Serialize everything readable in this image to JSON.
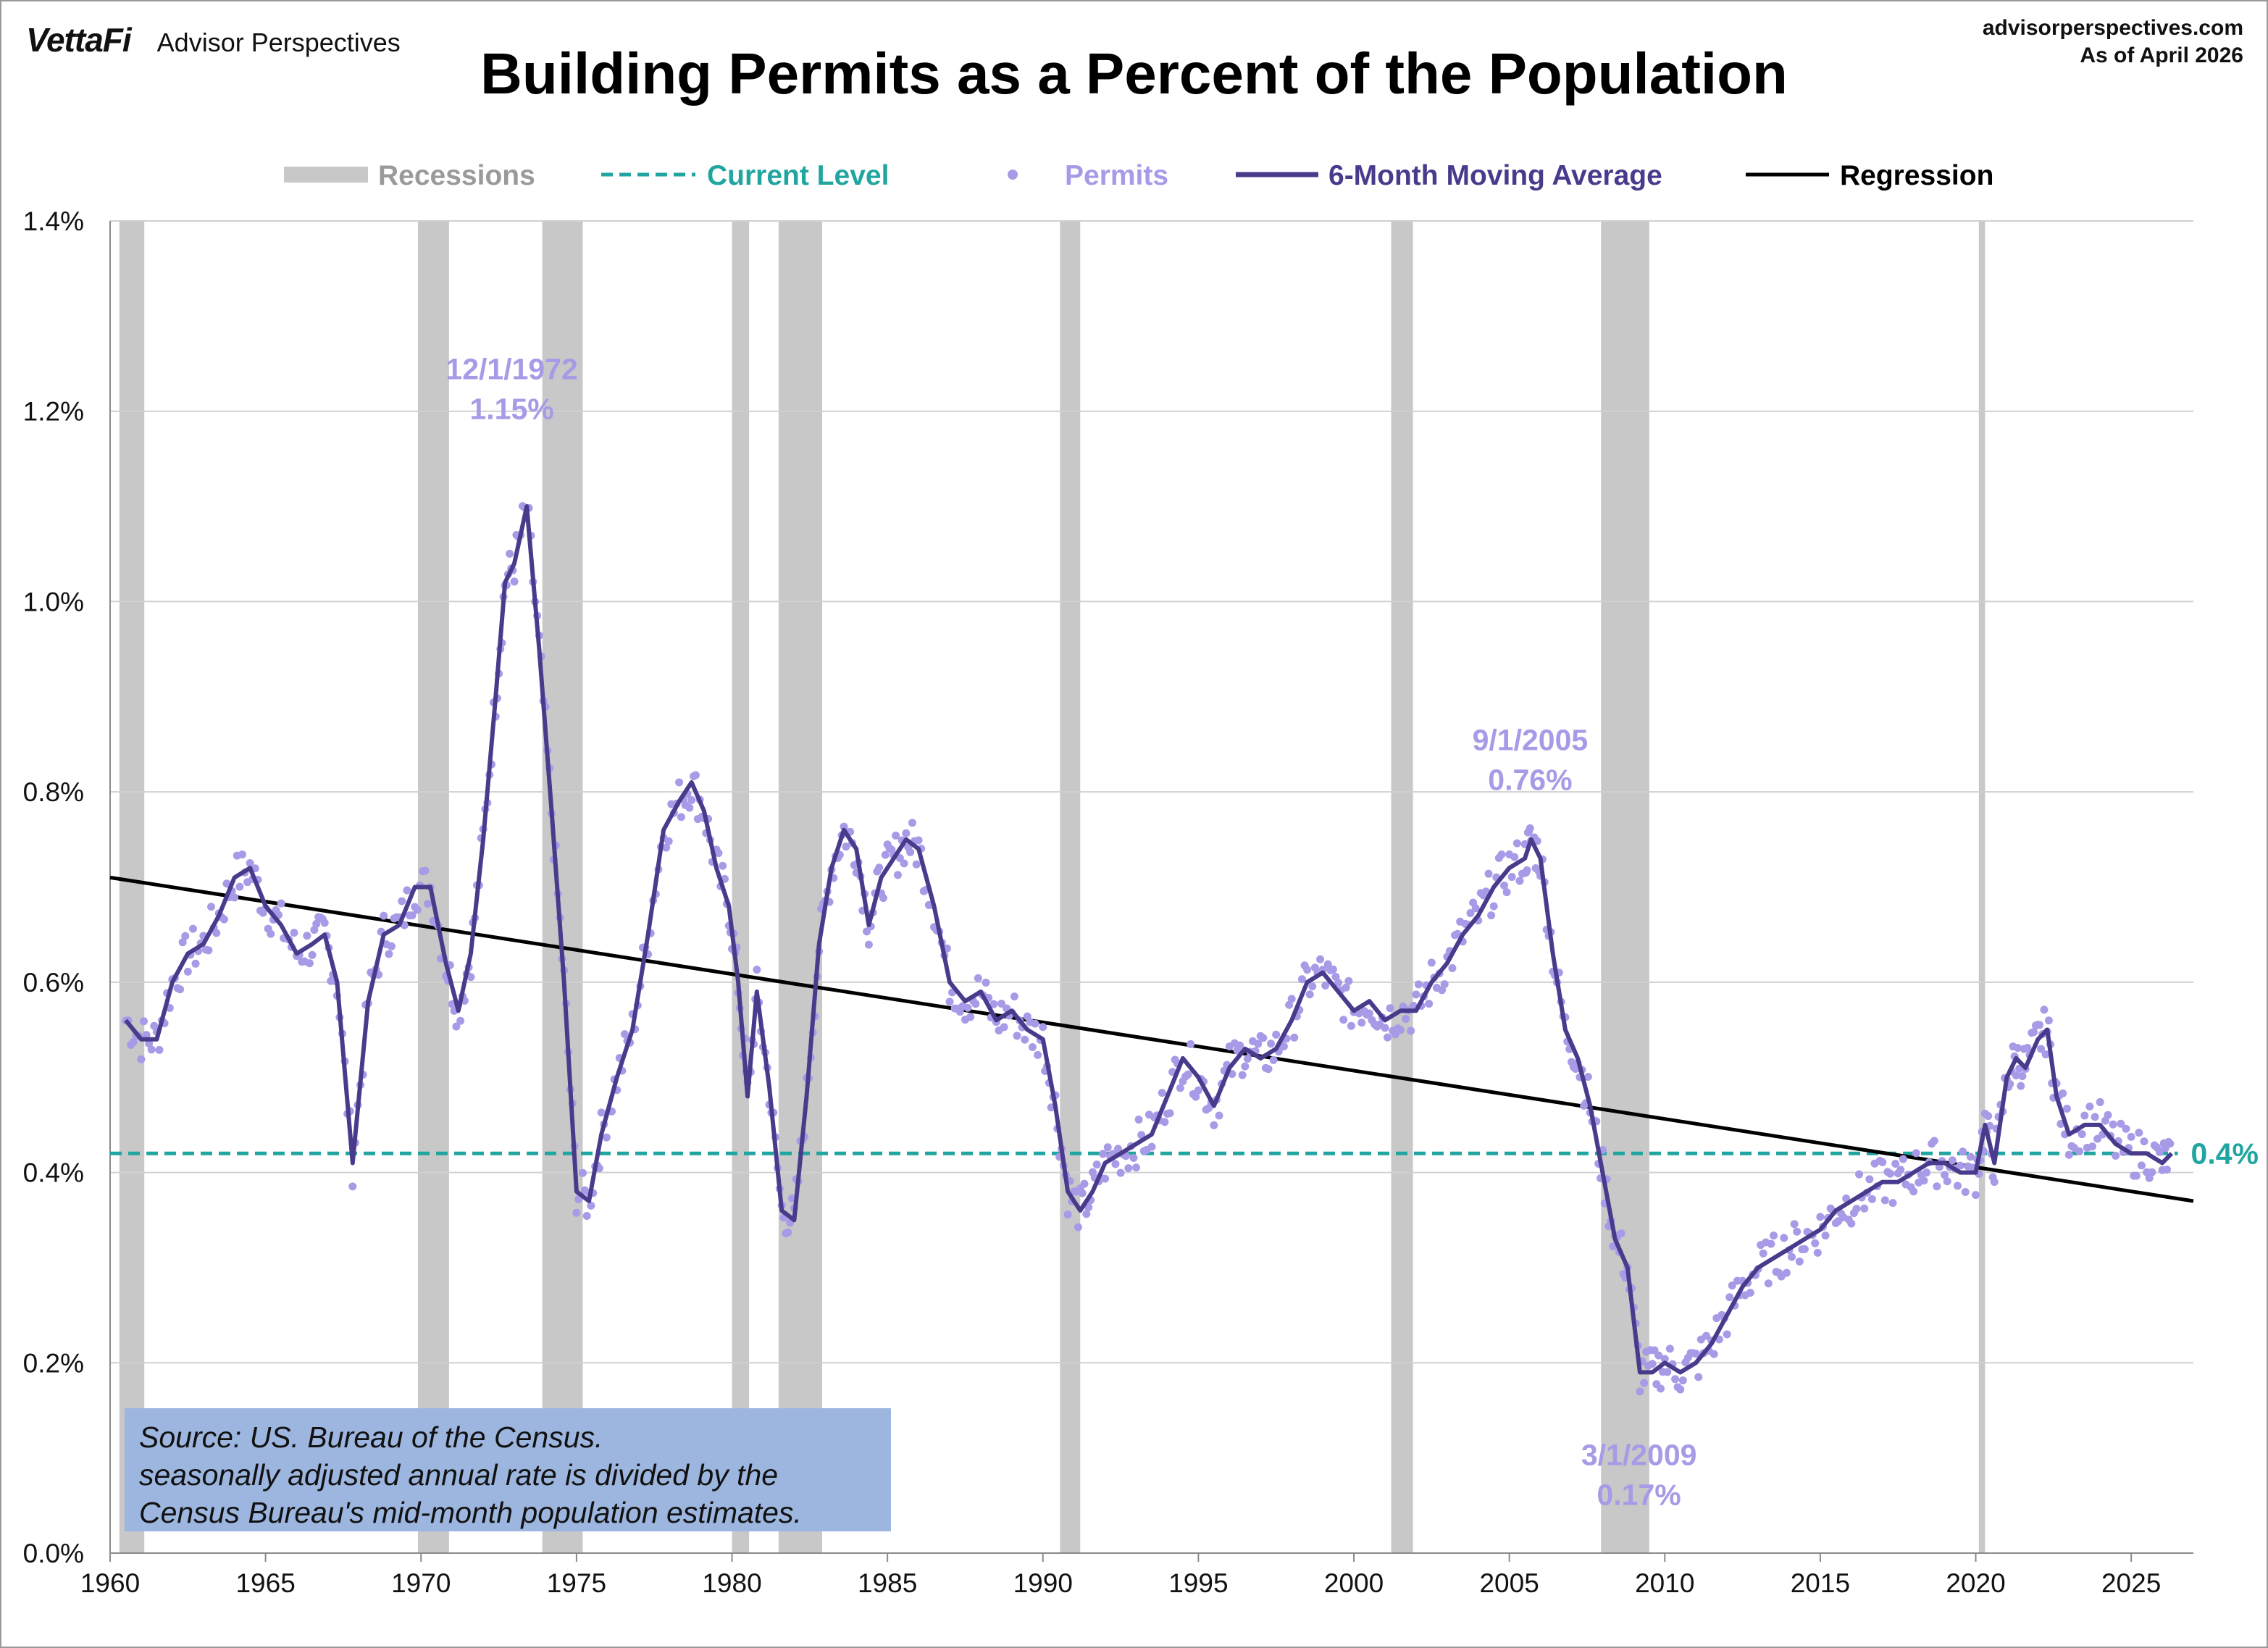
{
  "brand": {
    "logo": "VettaFi",
    "name": "Advisor Perspectives"
  },
  "site": {
    "url": "advisorperspectives.com",
    "asof": "As of April 2026"
  },
  "colors": {
    "recession": "#c8c8c8",
    "current": "#20a5a0",
    "permits": "#a89ae6",
    "ma": "#4a3a8c",
    "regression": "#000000",
    "grid": "#d0d0d0"
  },
  "legend": {
    "recessions": "Recessions",
    "current": "Current Level",
    "permits": "Permits",
    "ma": "6-Month Moving Average",
    "regression": "Regression"
  },
  "source": {
    "line1": "Source: US. Bureau of the Census.",
    "line2": "seasonally adjusted annual rate is divided by the",
    "line3": "Census Bureau's mid-month population estimates."
  },
  "chart_data": {
    "type": "line",
    "title": "Building Permits as a Percent of the Population",
    "xlim": [
      1960,
      2027
    ],
    "ylim": [
      0,
      1.4
    ],
    "y_ticks": [
      0,
      0.2,
      0.4,
      0.6,
      0.8,
      1.0,
      1.2,
      1.4
    ],
    "y_tick_labels": [
      "0.0%",
      "0.2%",
      "0.4%",
      "0.6%",
      "0.8%",
      "1.0%",
      "1.2%",
      "1.4%"
    ],
    "x_ticks": [
      1960,
      1965,
      1970,
      1975,
      1980,
      1985,
      1990,
      1995,
      2000,
      2005,
      2010,
      2015,
      2020,
      2025
    ],
    "grid": "horizontal",
    "legend_position": "top",
    "recessions": [
      [
        1960.3,
        1961.1
      ],
      [
        1969.9,
        1970.9
      ],
      [
        1973.9,
        1975.2
      ],
      [
        1980.0,
        1980.55
      ],
      [
        1981.5,
        1982.9
      ],
      [
        1990.55,
        1991.2
      ],
      [
        2001.2,
        2001.9
      ],
      [
        2007.95,
        2009.5
      ],
      [
        2020.1,
        2020.3
      ]
    ],
    "current_level": {
      "value": 0.42,
      "label": "0.4%"
    },
    "regression": {
      "x": [
        1960,
        2027
      ],
      "y": [
        0.71,
        0.37
      ]
    },
    "annotations": [
      {
        "line1": "12/1/1972",
        "line2": "1.15%",
        "x": 1972.92,
        "y": 1.15
      },
      {
        "line1": "9/1/2005",
        "line2": "0.76%",
        "x": 2005.67,
        "y": 0.76
      },
      {
        "line1": "3/1/2009",
        "line2": "0.17%",
        "x": 2009.17,
        "y": 0.17
      }
    ],
    "series": [
      {
        "name": "6-Month Moving Average",
        "x": [
          1960.5,
          1961.0,
          1961.5,
          1962.0,
          1962.5,
          1963.0,
          1963.5,
          1964.0,
          1964.5,
          1965.0,
          1965.5,
          1966.0,
          1966.5,
          1966.9,
          1967.3,
          1967.8,
          1968.3,
          1968.8,
          1969.3,
          1969.8,
          1970.3,
          1970.8,
          1971.2,
          1971.6,
          1972.0,
          1972.4,
          1972.7,
          1973.0,
          1973.4,
          1973.8,
          1974.2,
          1974.6,
          1975.0,
          1975.4,
          1975.8,
          1976.3,
          1976.8,
          1977.3,
          1977.8,
          1978.3,
          1978.7,
          1979.1,
          1979.5,
          1979.9,
          1980.2,
          1980.5,
          1980.8,
          1981.2,
          1981.6,
          1982.0,
          1982.4,
          1982.8,
          1983.2,
          1983.6,
          1984.0,
          1984.4,
          1984.8,
          1985.2,
          1985.6,
          1986.0,
          1986.5,
          1987.0,
          1987.5,
          1988.0,
          1988.5,
          1989.0,
          1989.5,
          1990.0,
          1990.4,
          1990.8,
          1991.2,
          1991.6,
          1992.0,
          1992.5,
          1993.0,
          1993.5,
          1994.0,
          1994.5,
          1995.0,
          1995.5,
          1996.0,
          1996.5,
          1997.0,
          1997.5,
          1998.0,
          1998.5,
          1999.0,
          1999.5,
          2000.0,
          2000.5,
          2001.0,
          2001.5,
          2002.0,
          2002.5,
          2003.0,
          2003.5,
          2004.0,
          2004.5,
          2005.0,
          2005.5,
          2005.7,
          2006.0,
          2006.4,
          2006.8,
          2007.2,
          2007.6,
          2008.0,
          2008.4,
          2008.8,
          2009.2,
          2009.6,
          2010.0,
          2010.5,
          2011.0,
          2011.5,
          2012.0,
          2012.5,
          2013.0,
          2013.5,
          2014.0,
          2014.5,
          2015.0,
          2015.5,
          2016.0,
          2016.5,
          2017.0,
          2017.5,
          2018.0,
          2018.5,
          2019.0,
          2019.5,
          2020.0,
          2020.3,
          2020.6,
          2021.0,
          2021.3,
          2021.6,
          2022.0,
          2022.3,
          2022.6,
          2023.0,
          2023.5,
          2024.0,
          2024.5,
          2025.0,
          2025.5,
          2026.0,
          2026.3
        ],
        "y": [
          0.56,
          0.54,
          0.54,
          0.6,
          0.63,
          0.64,
          0.67,
          0.71,
          0.72,
          0.68,
          0.66,
          0.63,
          0.64,
          0.65,
          0.6,
          0.41,
          0.58,
          0.65,
          0.66,
          0.7,
          0.7,
          0.62,
          0.57,
          0.63,
          0.75,
          0.9,
          1.02,
          1.04,
          1.1,
          0.95,
          0.78,
          0.6,
          0.38,
          0.37,
          0.44,
          0.5,
          0.55,
          0.65,
          0.76,
          0.79,
          0.81,
          0.78,
          0.72,
          0.68,
          0.6,
          0.48,
          0.59,
          0.49,
          0.36,
          0.35,
          0.48,
          0.64,
          0.72,
          0.76,
          0.74,
          0.66,
          0.71,
          0.73,
          0.75,
          0.74,
          0.68,
          0.6,
          0.58,
          0.59,
          0.56,
          0.57,
          0.55,
          0.54,
          0.47,
          0.38,
          0.36,
          0.38,
          0.41,
          0.42,
          0.43,
          0.44,
          0.48,
          0.52,
          0.5,
          0.47,
          0.51,
          0.53,
          0.52,
          0.53,
          0.56,
          0.6,
          0.61,
          0.59,
          0.57,
          0.58,
          0.56,
          0.57,
          0.57,
          0.6,
          0.62,
          0.65,
          0.67,
          0.7,
          0.72,
          0.73,
          0.75,
          0.73,
          0.63,
          0.55,
          0.52,
          0.47,
          0.4,
          0.33,
          0.3,
          0.19,
          0.19,
          0.2,
          0.19,
          0.2,
          0.22,
          0.25,
          0.28,
          0.3,
          0.31,
          0.32,
          0.33,
          0.34,
          0.36,
          0.37,
          0.38,
          0.39,
          0.39,
          0.4,
          0.41,
          0.41,
          0.4,
          0.4,
          0.45,
          0.41,
          0.5,
          0.52,
          0.51,
          0.54,
          0.55,
          0.48,
          0.44,
          0.45,
          0.45,
          0.43,
          0.42,
          0.42,
          0.41,
          0.42
        ]
      },
      {
        "name": "Regression",
        "x": [
          1960,
          2027
        ],
        "y": [
          0.71,
          0.37
        ]
      }
    ]
  }
}
